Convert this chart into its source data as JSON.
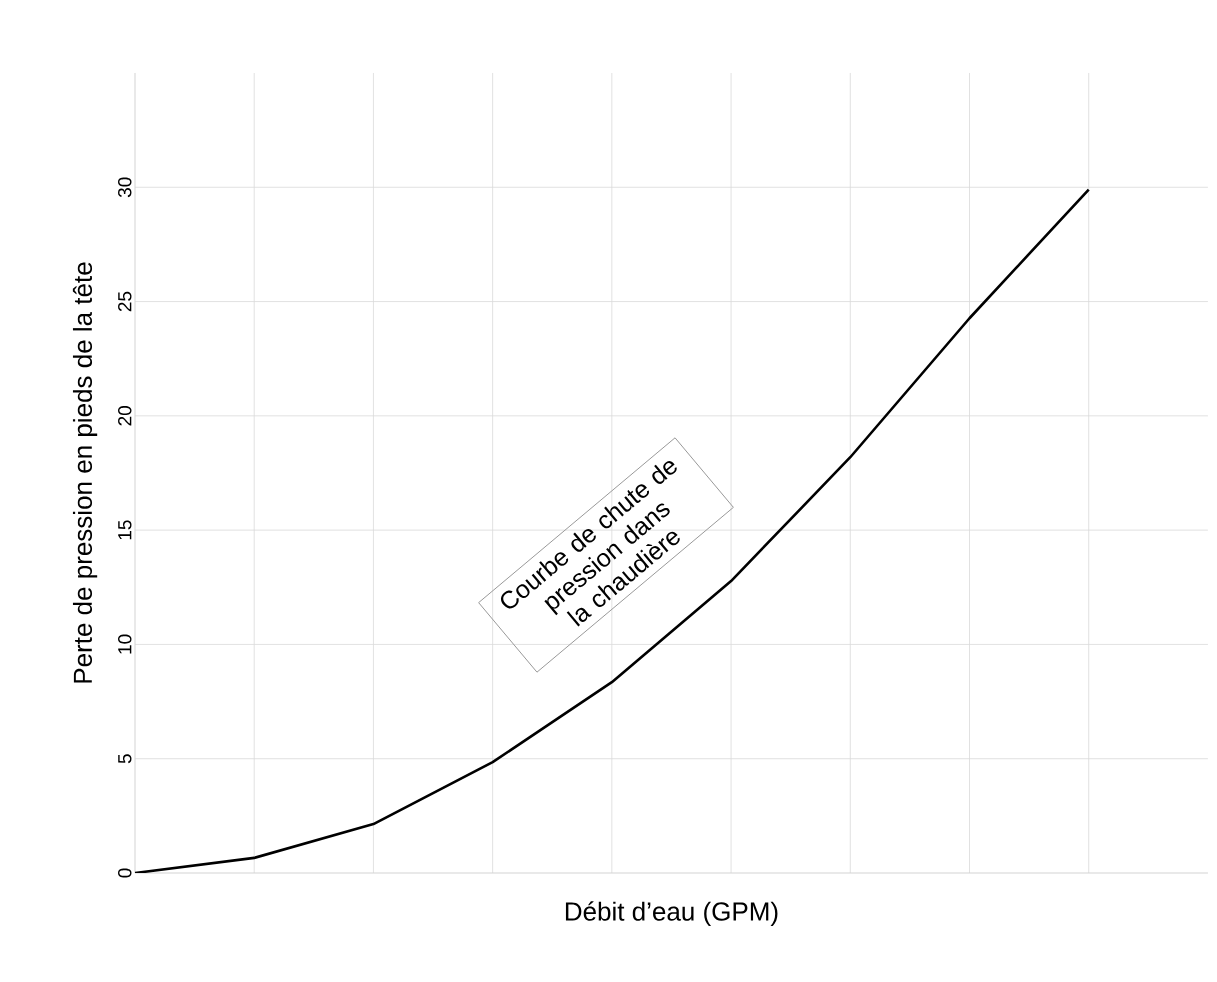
{
  "chart_data": {
    "type": "line",
    "xlabel": "Débit d’eau (GPM)",
    "ylabel": "Perte de pression en pieds de la tête",
    "categories": [
      null,
      null,
      null,
      null,
      null,
      null,
      null,
      null,
      null
    ],
    "series": [
      {
        "color": "#000000",
        "values": [
          0,
          0.66,
          2.14,
          4.85,
          8.35,
          12.77,
          18.19,
          24.27,
          29.9
        ]
      }
    ],
    "ylim": [
      0,
      35
    ],
    "yticks": [
      0,
      5,
      10,
      15,
      20,
      25,
      30
    ],
    "grid": true,
    "tick_labels": "y",
    "marker": "none",
    "line_style": "solid",
    "annotations": [
      "Courbe de chute de pression dans la chaudière"
    ]
  }
}
